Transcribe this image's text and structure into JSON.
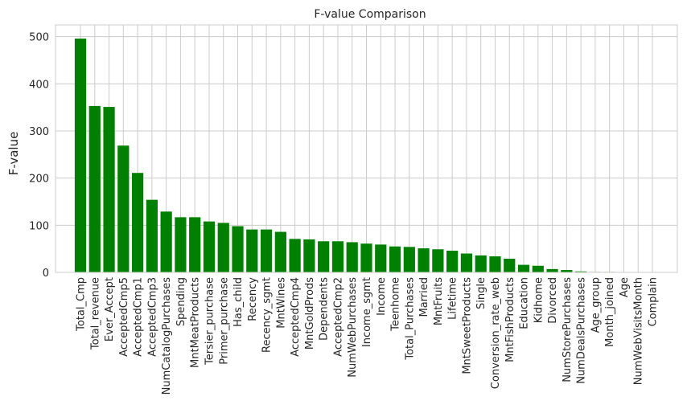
{
  "chart_data": {
    "type": "bar",
    "title": "F-value Comparison",
    "xlabel": "",
    "ylabel": "F-value",
    "ylim": [
      0,
      525
    ],
    "yticks": [
      0,
      100,
      200,
      300,
      400,
      500
    ],
    "grid": true,
    "bar_color": "#008000",
    "categories": [
      "Total_Cmp",
      "Total_revenue",
      "Ever_Accept",
      "AcceptedCmp5",
      "AcceptedCmp1",
      "AcceptedCmp3",
      "NumCatalogPurchases",
      "Spending",
      "MntMeatProducts",
      "Tersier_purchase",
      "Primer_purchase",
      "Has_child",
      "Recency",
      "Recency_sgmt",
      "MntWines",
      "AcceptedCmp4",
      "MntGoldProds",
      "Dependents",
      "AcceptedCmp2",
      "NumWebPurchases",
      "Income_sgmt",
      "Income",
      "Teenhome",
      "Total_Purchases",
      "Married",
      "MntFruits",
      "Lifetime",
      "MntSweetProducts",
      "Single",
      "Conversion_rate_web",
      "MntFishProducts",
      "Education",
      "Kidhome",
      "Divorced",
      "NumStorePurchases",
      "NumDealsPurchases",
      "Age_group",
      "Month_joined",
      "Age",
      "NumWebVisitsMonth",
      "Complain"
    ],
    "values": [
      496,
      353,
      351,
      269,
      211,
      154,
      129,
      117,
      117,
      108,
      105,
      98,
      91,
      91,
      86,
      71,
      70,
      66,
      66,
      64,
      61,
      59,
      55,
      54,
      51,
      49,
      46,
      40,
      36,
      34,
      29,
      16,
      14,
      7,
      5,
      2,
      1,
      1,
      0.5,
      0.5,
      0.3
    ]
  }
}
